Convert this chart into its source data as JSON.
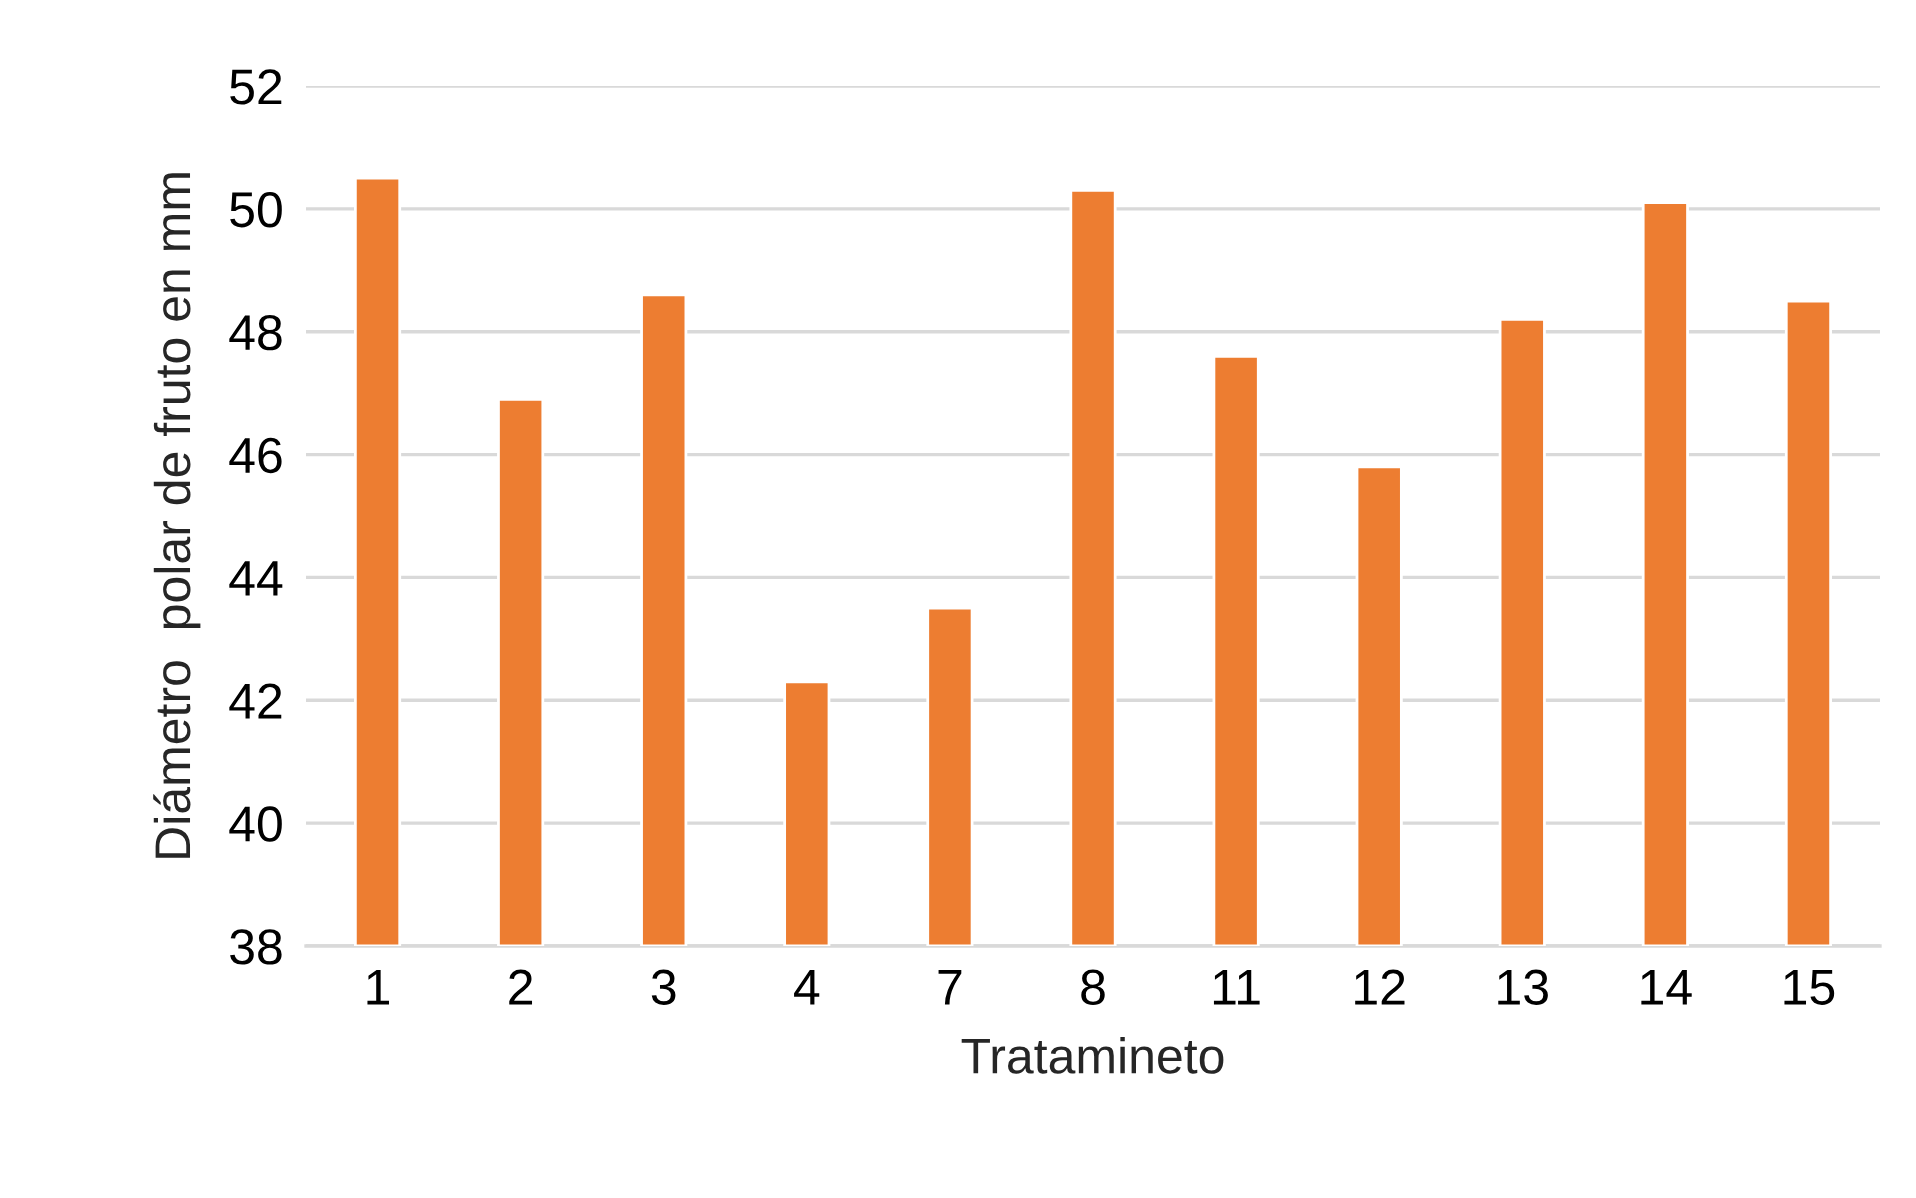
{
  "chart_data": {
    "type": "bar",
    "xlabel": "Tratamineto",
    "ylabel": "Diámetro  polar de fruto en mm",
    "categories": [
      "1",
      "2",
      "3",
      "4",
      "7",
      "8",
      "11",
      "12",
      "13",
      "14",
      "15"
    ],
    "values": [
      50.5,
      46.9,
      48.6,
      42.3,
      43.5,
      50.3,
      47.6,
      45.8,
      48.2,
      50.1,
      48.5
    ],
    "color": "#ed7d31",
    "ylim": [
      38,
      52
    ],
    "yticks": [
      38,
      40,
      42,
      44,
      46,
      48,
      50,
      52
    ],
    "grid": "y",
    "legend": false
  }
}
